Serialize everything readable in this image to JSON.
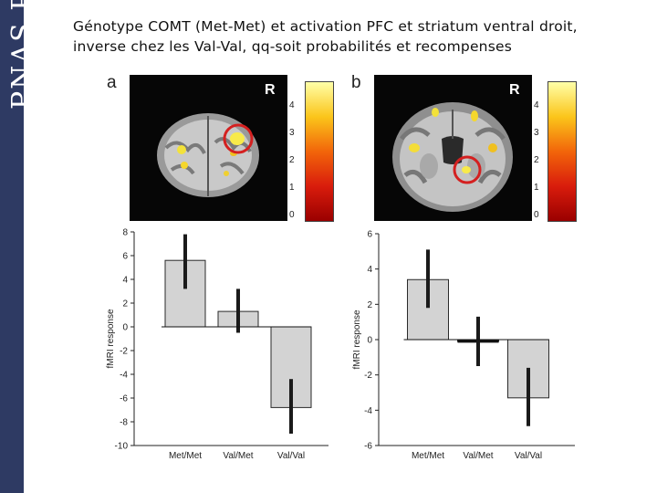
{
  "slide": {
    "title_line1": "Génotype COMT (Met-Met) et activation PFC et striatum ventral droit,",
    "title_line2": "inverse chez les Val-Val, qq-soit probabilités et recompenses",
    "journal_watermark": "PNAS PNAS PNAS PNAS"
  },
  "panels": [
    {
      "letter": "a",
      "hemisphere_label": "R",
      "colorbar_ticks": [
        "4",
        "3",
        "2",
        "1",
        "0"
      ]
    },
    {
      "letter": "b",
      "hemisphere_label": "R",
      "colorbar_ticks": [
        "4",
        "3",
        "2",
        "1",
        "0"
      ]
    }
  ],
  "colors": {
    "sidebar": "#2e3a63",
    "bar_fill": "#d3d3d3",
    "error_bar": "#1a1a1a",
    "roi_circle": "#d42020"
  },
  "chart_data": [
    {
      "type": "bar",
      "categories": [
        "Met/Met",
        "Val/Met",
        "Val/Val"
      ],
      "values": [
        5.6,
        1.3,
        -6.8
      ],
      "error_low": [
        3.2,
        -0.5,
        -9.0
      ],
      "error_high": [
        7.8,
        3.2,
        -4.4
      ],
      "ylabel": "fMRI response",
      "ylim": [
        -10,
        8
      ],
      "yticks": [
        8,
        6,
        4,
        2,
        0,
        -2,
        -4,
        -6,
        -8,
        -10
      ],
      "grid": false
    },
    {
      "type": "bar",
      "categories": [
        "Met/Met",
        "Val/Met",
        "Val/Val"
      ],
      "values": [
        3.4,
        -0.1,
        -3.3
      ],
      "error_low": [
        1.8,
        -1.5,
        -4.9
      ],
      "error_high": [
        5.1,
        1.3,
        -1.6
      ],
      "ylabel": "fMRI response",
      "ylim": [
        -6,
        6
      ],
      "yticks": [
        6,
        4,
        2,
        0,
        -2,
        -4,
        -6
      ],
      "grid": false
    }
  ]
}
